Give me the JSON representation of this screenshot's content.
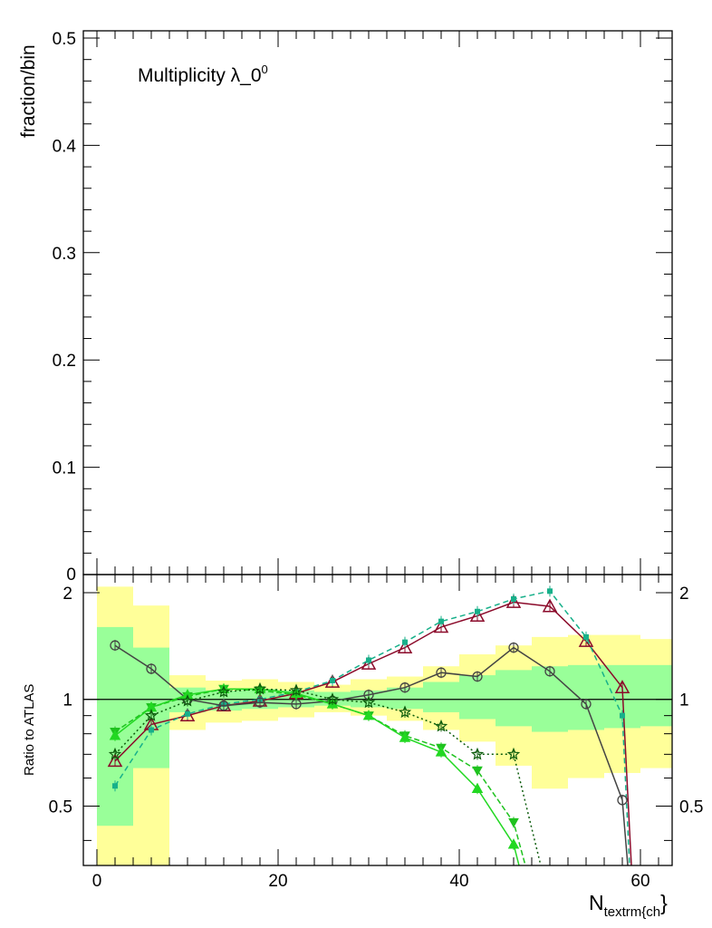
{
  "chart_data": [
    {
      "type": "line",
      "panel": "main",
      "ylabel": "fraction/bin",
      "annotation": "Multiplicity λ_0",
      "annotation_sup": "0",
      "ylim": [
        0,
        0.5
      ],
      "yticks": [
        0.1,
        0.2,
        0.3,
        0.4,
        0.5
      ],
      "ytick_labels": [
        "0.1",
        "0.2",
        "0.3",
        "0.4",
        "0.5"
      ],
      "y_zero_label": "0",
      "series": []
    },
    {
      "type": "line",
      "panel": "ratio",
      "ylabel": "Ratio to ATLAS",
      "xlabel": "N",
      "xlabel_sub": "textrm{ch",
      "xlabel_suffix": "}",
      "xlim": [
        -1.5,
        63.5
      ],
      "ylim": [
        0.34,
        2.25
      ],
      "xticks": [
        0,
        20,
        40,
        60
      ],
      "xtick_labels": [
        "0",
        "20",
        "40",
        "60"
      ],
      "yticks": [
        0.5,
        1,
        2
      ],
      "ytick_labels": [
        "0.5",
        "1",
        "2"
      ],
      "reference_line": 1,
      "bands": {
        "edges": [
          0,
          4,
          8,
          12,
          16,
          20,
          24,
          28,
          32,
          36,
          40,
          44,
          48,
          52,
          56,
          60,
          64
        ],
        "yellow_lo": [
          0.3,
          0.3,
          0.82,
          0.86,
          0.87,
          0.89,
          0.92,
          0.9,
          0.87,
          0.82,
          0.76,
          0.65,
          0.56,
          0.6,
          0.62,
          0.64,
          0.65
        ],
        "yellow_hi": [
          2.08,
          1.84,
          1.17,
          1.13,
          1.14,
          1.12,
          1.1,
          1.14,
          1.16,
          1.24,
          1.34,
          1.42,
          1.5,
          1.52,
          1.52,
          1.48,
          1.46
        ],
        "green_lo": [
          0.44,
          0.64,
          0.92,
          0.93,
          0.94,
          0.95,
          0.96,
          0.95,
          0.94,
          0.92,
          0.88,
          0.84,
          0.81,
          0.82,
          0.83,
          0.84,
          0.85
        ],
        "green_hi": [
          1.6,
          1.4,
          1.08,
          1.06,
          1.07,
          1.06,
          1.05,
          1.06,
          1.08,
          1.12,
          1.17,
          1.21,
          1.24,
          1.25,
          1.25,
          1.25,
          1.24
        ]
      },
      "series": [
        {
          "id": "dark-red-triangles",
          "color": "#8b0a2a",
          "dash": "",
          "marker": "triangle-open",
          "x": [
            2,
            6,
            10,
            14,
            18,
            22,
            26,
            30,
            34,
            38,
            42,
            46,
            50,
            54,
            58,
            59
          ],
          "y": [
            0.67,
            0.85,
            0.9,
            0.96,
            0.99,
            1.04,
            1.12,
            1.26,
            1.4,
            1.6,
            1.72,
            1.88,
            1.83,
            1.46,
            1.08,
            0.34
          ]
        },
        {
          "id": "teal-squares",
          "color": "#17b08a",
          "dash": "6,4",
          "marker": "square",
          "x": [
            2,
            6,
            10,
            14,
            18,
            22,
            26,
            30,
            34,
            38,
            42,
            46,
            50,
            54,
            58,
            58.8
          ],
          "y": [
            0.57,
            0.82,
            0.91,
            0.97,
            1.0,
            1.05,
            1.13,
            1.29,
            1.45,
            1.66,
            1.77,
            1.92,
            2.02,
            1.5,
            0.9,
            0.34
          ]
        },
        {
          "id": "grey-circles",
          "color": "#444444",
          "dash": "",
          "marker": "circle-open",
          "x": [
            2,
            6,
            10,
            14,
            18,
            22,
            26,
            30,
            34,
            38,
            42,
            46,
            50,
            54,
            58,
            58.6
          ],
          "y": [
            1.42,
            1.22,
            1.0,
            0.96,
            0.98,
            0.97,
            0.99,
            1.03,
            1.08,
            1.19,
            1.16,
            1.4,
            1.2,
            0.97,
            0.52,
            0.34
          ]
        },
        {
          "id": "green-down-triangles",
          "color": "#1fc21f",
          "dash": "6,3",
          "marker": "triangle-down",
          "x": [
            2,
            6,
            10,
            14,
            18,
            22,
            26,
            30,
            34,
            38,
            42,
            46,
            47.3
          ],
          "y": [
            0.81,
            0.95,
            1.02,
            1.07,
            1.06,
            1.03,
            0.97,
            0.9,
            0.79,
            0.73,
            0.63,
            0.45,
            0.34
          ]
        },
        {
          "id": "bright-green-triangles",
          "color": "#22d822",
          "dash": "",
          "marker": "triangle-up",
          "x": [
            2,
            6,
            10,
            14,
            18,
            22,
            26,
            30,
            34,
            38,
            42,
            46,
            46.6
          ],
          "y": [
            0.79,
            0.95,
            1.03,
            1.07,
            1.07,
            1.04,
            0.97,
            0.9,
            0.78,
            0.71,
            0.56,
            0.39,
            0.34
          ]
        },
        {
          "id": "dark-green-stars",
          "color": "#0c5c0c",
          "dash": "2,3",
          "marker": "star-open",
          "x": [
            2,
            6,
            10,
            14,
            18,
            22,
            26,
            30,
            34,
            38,
            42,
            46,
            49
          ],
          "y": [
            0.7,
            0.9,
            0.99,
            1.05,
            1.07,
            1.06,
            1.0,
            0.98,
            0.92,
            0.84,
            0.7,
            0.7,
            0.34
          ]
        }
      ]
    }
  ]
}
